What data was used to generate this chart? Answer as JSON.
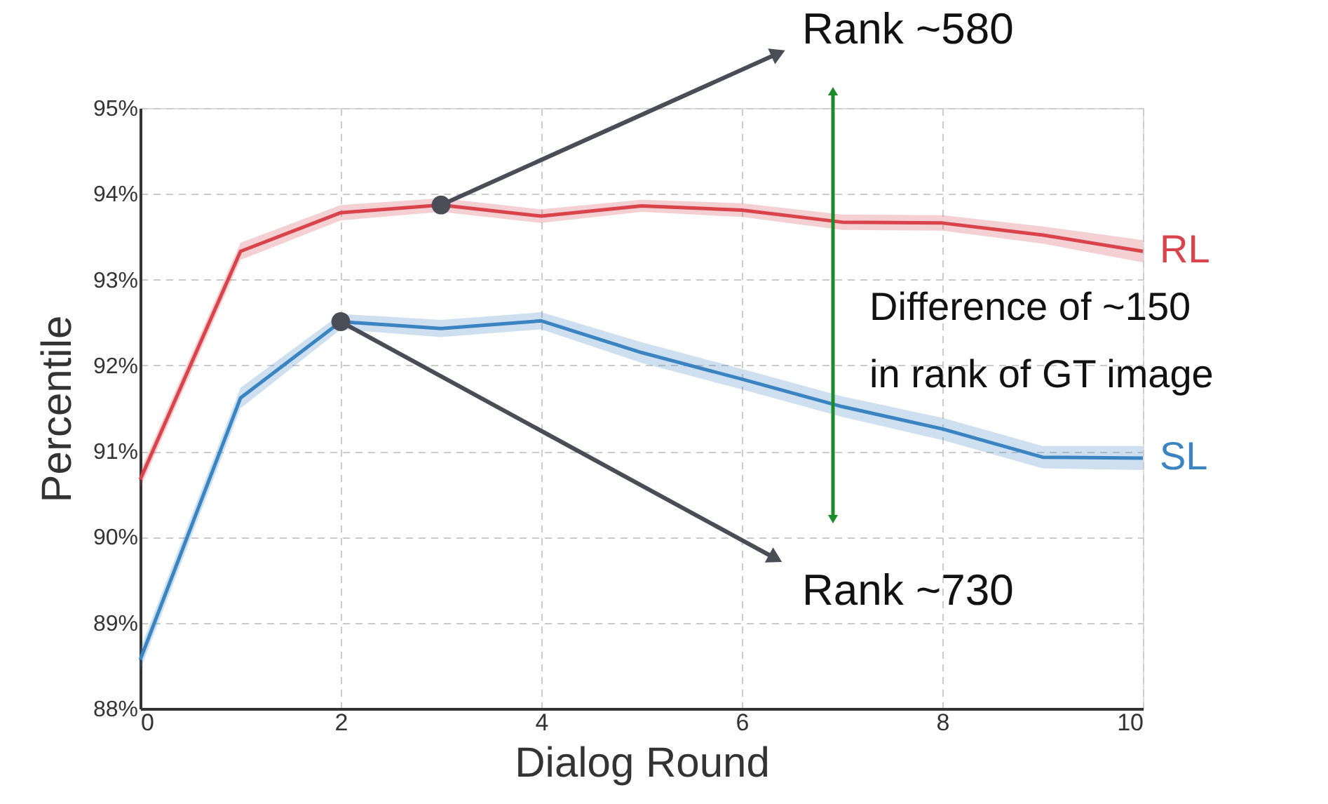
{
  "chart_data": {
    "type": "line",
    "xlabel": "Dialog Round",
    "ylabel": "Percentile",
    "x": [
      0,
      1,
      2,
      3,
      4,
      5,
      6,
      7,
      8,
      9,
      10
    ],
    "series": [
      {
        "name": "RL",
        "color": "#d9434b",
        "values": [
          90.67,
          93.33,
          93.78,
          93.87,
          93.74,
          93.86,
          93.81,
          93.67,
          93.66,
          93.52,
          93.33
        ],
        "lower": [
          90.57,
          93.23,
          93.69,
          93.79,
          93.66,
          93.79,
          93.73,
          93.58,
          93.57,
          93.42,
          93.2
        ],
        "upper": [
          90.77,
          93.43,
          93.87,
          93.95,
          93.82,
          93.93,
          93.89,
          93.76,
          93.75,
          93.62,
          93.46
        ]
      },
      {
        "name": "SL",
        "color": "#3a84c2",
        "values": [
          88.57,
          91.62,
          92.51,
          92.43,
          92.52,
          92.15,
          91.84,
          91.52,
          91.26,
          90.93,
          90.92
        ],
        "lower": [
          88.45,
          91.5,
          92.42,
          92.33,
          92.42,
          92.03,
          91.72,
          91.4,
          91.13,
          90.8,
          90.78
        ],
        "upper": [
          88.69,
          91.74,
          92.6,
          92.53,
          92.62,
          92.27,
          91.96,
          91.64,
          91.39,
          91.06,
          91.06
        ]
      }
    ],
    "xlim": [
      0,
      10
    ],
    "xticks": [
      0,
      2,
      4,
      6,
      8,
      10
    ],
    "ylim": [
      88,
      95
    ],
    "yticks": [
      {
        "value": 88,
        "label": "88%"
      },
      {
        "value": 89,
        "label": "89%"
      },
      {
        "value": 90,
        "label": "90%"
      },
      {
        "value": 91,
        "label": "91%"
      },
      {
        "value": 92,
        "label": "92%"
      },
      {
        "value": 93,
        "label": "93%"
      },
      {
        "value": 94,
        "label": "94%"
      },
      {
        "value": 95,
        "label": "95%"
      }
    ],
    "grid": true,
    "marker": "none",
    "line_style": "solid",
    "legend": false,
    "annotations": [
      {
        "text": "Rank ~580",
        "x": 3,
        "y": 93.87
      },
      {
        "text": "Rank ~730",
        "x": 2,
        "y": 92.51
      },
      "Difference of ~150\nin rank of GT image"
    ]
  }
}
